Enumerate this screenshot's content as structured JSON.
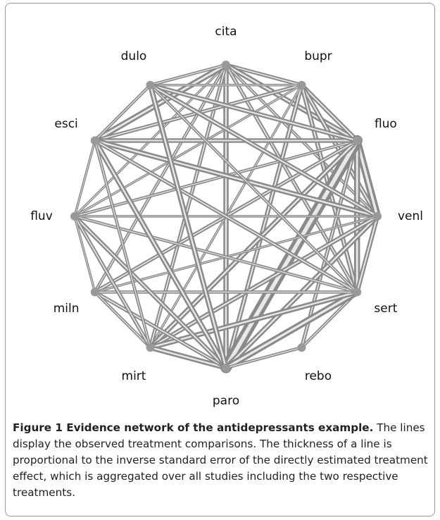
{
  "nodes": [
    {
      "label": "cita"
    },
    {
      "label": "bupr"
    },
    {
      "label": "fluo"
    },
    {
      "label": "venl"
    },
    {
      "label": "sert"
    },
    {
      "label": "rebo"
    },
    {
      "label": "paro"
    },
    {
      "label": "mirt"
    },
    {
      "label": "miln"
    },
    {
      "label": "fluv"
    },
    {
      "label": "esci"
    },
    {
      "label": "dulo"
    }
  ],
  "edges": [
    {
      "from": "cita",
      "to": "bupr",
      "weight": 4
    },
    {
      "from": "cita",
      "to": "fluo",
      "weight": 6
    },
    {
      "from": "cita",
      "to": "venl",
      "weight": 3
    },
    {
      "from": "cita",
      "to": "sert",
      "weight": 4
    },
    {
      "from": "cita",
      "to": "paro",
      "weight": 6
    },
    {
      "from": "cita",
      "to": "mirt",
      "weight": 4
    },
    {
      "from": "cita",
      "to": "miln",
      "weight": 3
    },
    {
      "from": "cita",
      "to": "fluv",
      "weight": 2
    },
    {
      "from": "cita",
      "to": "esci",
      "weight": 7
    },
    {
      "from": "cita",
      "to": "dulo",
      "weight": 3
    },
    {
      "from": "bupr",
      "to": "fluo",
      "weight": 5
    },
    {
      "from": "bupr",
      "to": "venl",
      "weight": 5
    },
    {
      "from": "bupr",
      "to": "sert",
      "weight": 5
    },
    {
      "from": "bupr",
      "to": "paro",
      "weight": 5
    },
    {
      "from": "bupr",
      "to": "esci",
      "weight": 4
    },
    {
      "from": "bupr",
      "to": "dulo",
      "weight": 2
    },
    {
      "from": "bupr",
      "to": "mirt",
      "weight": 2
    },
    {
      "from": "bupr",
      "to": "fluv",
      "weight": 2
    },
    {
      "from": "fluo",
      "to": "venl",
      "weight": 9
    },
    {
      "from": "fluo",
      "to": "sert",
      "weight": 7
    },
    {
      "from": "fluo",
      "to": "rebo",
      "weight": 4
    },
    {
      "from": "fluo",
      "to": "paro",
      "weight": 14
    },
    {
      "from": "fluo",
      "to": "mirt",
      "weight": 6
    },
    {
      "from": "fluo",
      "to": "miln",
      "weight": 4
    },
    {
      "from": "fluo",
      "to": "fluv",
      "weight": 3
    },
    {
      "from": "fluo",
      "to": "esci",
      "weight": 5
    },
    {
      "from": "fluo",
      "to": "dulo",
      "weight": 5
    },
    {
      "from": "venl",
      "to": "sert",
      "weight": 5
    },
    {
      "from": "venl",
      "to": "paro",
      "weight": 6
    },
    {
      "from": "venl",
      "to": "mirt",
      "weight": 5
    },
    {
      "from": "venl",
      "to": "fluv",
      "weight": 2
    },
    {
      "from": "venl",
      "to": "esci",
      "weight": 6
    },
    {
      "from": "venl",
      "to": "dulo",
      "weight": 5
    },
    {
      "from": "venl",
      "to": "miln",
      "weight": 2
    },
    {
      "from": "sert",
      "to": "rebo",
      "weight": 3
    },
    {
      "from": "sert",
      "to": "paro",
      "weight": 8
    },
    {
      "from": "sert",
      "to": "mirt",
      "weight": 6
    },
    {
      "from": "sert",
      "to": "miln",
      "weight": 3
    },
    {
      "from": "sert",
      "to": "fluv",
      "weight": 3
    },
    {
      "from": "sert",
      "to": "esci",
      "weight": 4
    },
    {
      "from": "sert",
      "to": "dulo",
      "weight": 3
    },
    {
      "from": "rebo",
      "to": "paro",
      "weight": 3
    },
    {
      "from": "paro",
      "to": "mirt",
      "weight": 6
    },
    {
      "from": "paro",
      "to": "miln",
      "weight": 4
    },
    {
      "from": "paro",
      "to": "fluv",
      "weight": 5
    },
    {
      "from": "paro",
      "to": "esci",
      "weight": 6
    },
    {
      "from": "paro",
      "to": "dulo",
      "weight": 6
    },
    {
      "from": "mirt",
      "to": "miln",
      "weight": 3
    },
    {
      "from": "mirt",
      "to": "fluv",
      "weight": 4
    },
    {
      "from": "mirt",
      "to": "esci",
      "weight": 3
    },
    {
      "from": "miln",
      "to": "fluv",
      "weight": 2
    },
    {
      "from": "fluv",
      "to": "esci",
      "weight": 2
    },
    {
      "from": "esci",
      "to": "dulo",
      "weight": 3
    }
  ],
  "caption": {
    "label": "Figure 1 Evidence network of the antidepressants example.",
    "text": "The lines display the observed treatment comparisons. The thickness of a line is proportional to the inverse standard error of the directly estimated treatment effect, which is aggregated over all studies including the two respective treatments."
  }
}
